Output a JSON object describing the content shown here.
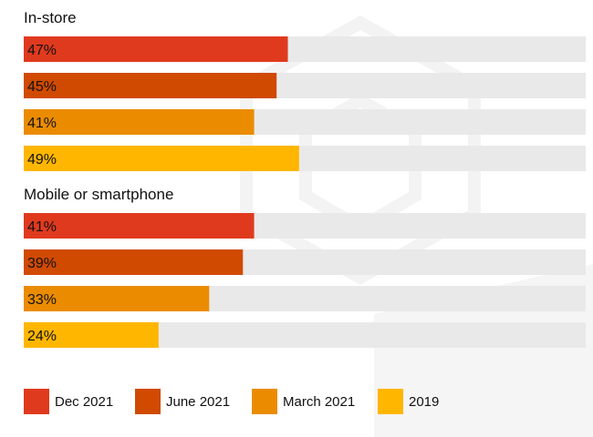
{
  "chart_data": {
    "type": "bar",
    "orientation": "horizontal",
    "xlim": [
      0,
      100
    ],
    "grid": false,
    "legend_position": "bottom",
    "groups": [
      {
        "title": "In-store",
        "values": [
          47,
          45,
          41,
          49
        ],
        "labels": [
          "47%",
          "45%",
          "41%",
          "49%"
        ]
      },
      {
        "title": "Mobile or smartphone",
        "values": [
          41,
          39,
          33,
          24
        ],
        "labels": [
          "41%",
          "39%",
          "33%",
          "24%"
        ]
      }
    ],
    "series": [
      {
        "name": "Dec 2021",
        "color": "#e03a1e"
      },
      {
        "name": "June 2021",
        "color": "#d04a02"
      },
      {
        "name": "March 2021",
        "color": "#eb8c00"
      },
      {
        "name": "2019",
        "color": "#ffb600"
      }
    ],
    "track_color": "#e9e9e9"
  }
}
